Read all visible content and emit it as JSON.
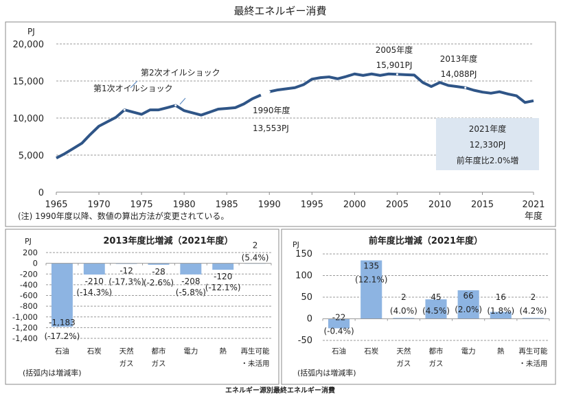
{
  "title": "最終エネルギー消費",
  "footer": "エネルギー源別最終エネルギー消費",
  "chart_data": [
    {
      "type": "line",
      "unit": "PJ",
      "ylim": [
        0,
        20000
      ],
      "yticks": [
        "20,000",
        "15,000",
        "10,000",
        "5,000",
        "0"
      ],
      "ytick_values": [
        20000,
        15000,
        10000,
        5000,
        0
      ],
      "xticks": [
        "1965",
        "1970",
        "1975",
        "1980",
        "1985",
        "1990",
        "1995",
        "2000",
        "2005",
        "2010",
        "2015",
        "2021"
      ],
      "xtick_values": [
        1965,
        1970,
        1975,
        1980,
        1985,
        1990,
        1995,
        2000,
        2005,
        2010,
        2015,
        2021
      ],
      "xlabel": "年度",
      "grid": true,
      "color": "#2f5587",
      "note": "(注) 1990年度以降、数値の算出方法が変更されている。",
      "segments": [
        {
          "x": [
            1965,
            1966,
            1967,
            1968,
            1969,
            1970,
            1971,
            1972,
            1973,
            1974,
            1975,
            1976,
            1977,
            1978,
            1979,
            1980,
            1981,
            1982,
            1983,
            1984,
            1985,
            1986,
            1987,
            1988,
            1989
          ],
          "y": [
            4600,
            5200,
            5900,
            6600,
            7800,
            8900,
            9500,
            10100,
            11100,
            10800,
            10500,
            11100,
            11100,
            11400,
            11700,
            11000,
            10700,
            10400,
            10800,
            11200,
            11300,
            11400,
            11900,
            12600,
            13100
          ]
        },
        {
          "x": [
            1990,
            1991,
            1992,
            1993,
            1994,
            1995,
            1996,
            1997,
            1998,
            1999,
            2000,
            2001,
            2002,
            2003,
            2004,
            2005,
            2006,
            2007,
            2008,
            2009,
            2010,
            2011,
            2012,
            2013,
            2014,
            2015,
            2016,
            2017,
            2018,
            2019,
            2020,
            2021
          ],
          "y": [
            13553,
            13800,
            13950,
            14100,
            14500,
            15250,
            15450,
            15550,
            15300,
            15600,
            15950,
            15750,
            15950,
            15750,
            15950,
            15901,
            15850,
            15800,
            14800,
            14250,
            14800,
            14400,
            14250,
            14088,
            13750,
            13500,
            13350,
            13550,
            13250,
            13000,
            12100,
            12330
          ]
        }
      ],
      "annotations": [
        {
          "text": "第1次オイルショック",
          "x": 1973
        },
        {
          "text": "第2次オイルショック",
          "x": 1979
        },
        {
          "line1": "1990年度",
          "line2": "13,553PJ",
          "x": 1990
        },
        {
          "line1": "2005年度",
          "line2": "15,901PJ",
          "x": 2005
        },
        {
          "line1": "2013年度",
          "line2": "14,088PJ",
          "x": 2013
        }
      ],
      "callout": {
        "line1": "2021年度",
        "line2": "12,330PJ",
        "line3": "前年度比2.0%増",
        "color": "#dce6f1"
      }
    },
    {
      "type": "bar",
      "title": "2013年度比増減（2021年度）",
      "unit": "PJ",
      "ylim": [
        -1400,
        200
      ],
      "yticks": [
        "200",
        "0",
        "-200",
        "-400",
        "-600",
        "-800",
        "-1,000",
        "-1,200",
        "-1,400"
      ],
      "ytick_values": [
        200,
        0,
        -200,
        -400,
        -600,
        -800,
        -1000,
        -1200,
        -1400
      ],
      "categories": [
        [
          "石油"
        ],
        [
          "石炭"
        ],
        [
          "天然",
          "ガス"
        ],
        [
          "都市",
          "ガス"
        ],
        [
          "電力"
        ],
        [
          "熱"
        ],
        [
          "再生可能",
          "・未活用"
        ]
      ],
      "values": [
        -1183,
        -210,
        -12,
        -28,
        -208,
        -120,
        2
      ],
      "value_labels": [
        "-1,183",
        "-210",
        "-12",
        "-28",
        "-208",
        "-120",
        "2"
      ],
      "pct_labels": [
        "(-17.2%)",
        "(-14.3%)",
        "(-17.3%)",
        "(-2.6%)",
        "(-5.8%)",
        "(-12.1%)",
        "(5.4%)"
      ],
      "note": "(括弧内は増減率)",
      "color": "#8db4e2",
      "grid": true
    },
    {
      "type": "bar",
      "title": "前年度比増減（2021年度）",
      "unit": "PJ",
      "ylim": [
        -50,
        150
      ],
      "yticks": [
        "150",
        "100",
        "50",
        "0",
        "-50"
      ],
      "ytick_values": [
        150,
        100,
        50,
        0,
        -50
      ],
      "categories": [
        [
          "石油"
        ],
        [
          "石炭"
        ],
        [
          "天然",
          "ガス"
        ],
        [
          "都市",
          "ガス"
        ],
        [
          "電力"
        ],
        [
          "熱"
        ],
        [
          "再生可能",
          "・未活用"
        ]
      ],
      "values": [
        -22,
        135,
        2,
        45,
        66,
        16,
        2
      ],
      "value_labels": [
        "-22",
        "135",
        "2",
        "45",
        "66",
        "16",
        "2"
      ],
      "pct_labels": [
        "(-0.4%)",
        "(12.1%)",
        "(4.0%)",
        "(4.5%)",
        "(2.0%)",
        "(1.8%)",
        "(4.2%)"
      ],
      "note": "(括弧内は増減率)",
      "color": "#8db4e2",
      "grid": true
    }
  ]
}
